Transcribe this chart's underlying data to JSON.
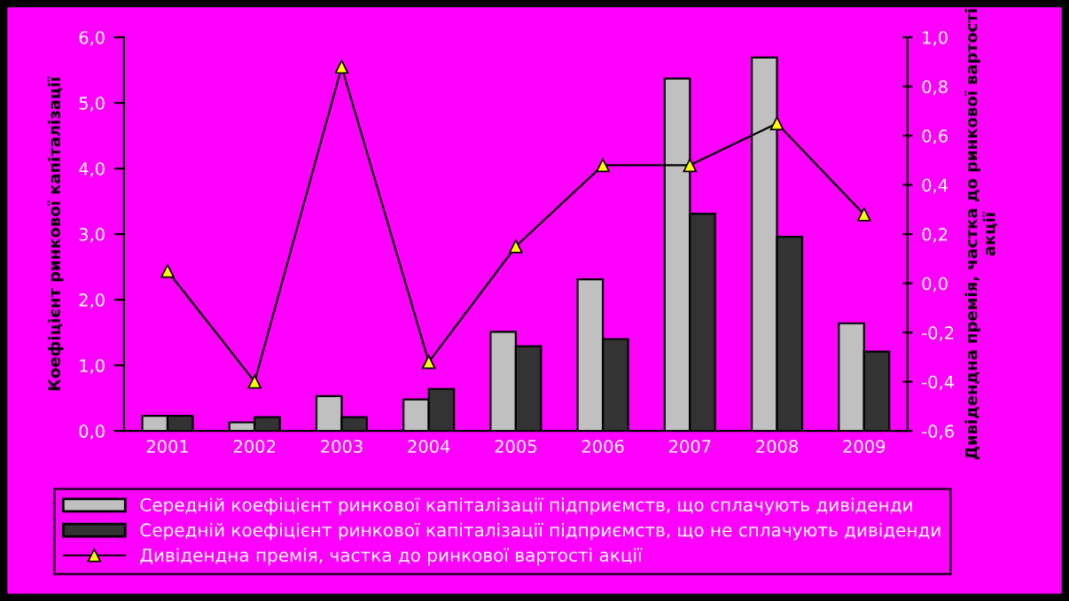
{
  "chart_data": {
    "type": "bar",
    "categories": [
      "2001",
      "2002",
      "2003",
      "2004",
      "2005",
      "2006",
      "2007",
      "2008",
      "2009"
    ],
    "ylabel": "Коефіцієнт ринкової капіталізації",
    "y2label": "Дивідендна премія, частка до ринкової вартості акції",
    "series": [
      {
        "name": "Середній коефіцієнт ринкової капіталізації підприємств, що сплачують дивіденди",
        "color": "#c0c0c0",
        "values": [
          0.23,
          0.13,
          0.53,
          0.48,
          1.51,
          2.31,
          5.37,
          5.69,
          1.64
        ]
      },
      {
        "name": "Середній коефіцієнт ринкової капіталізації підприємств, що не сплачують дивіденди",
        "color": "#333333",
        "values": [
          0.23,
          0.21,
          0.21,
          0.64,
          1.29,
          1.4,
          3.31,
          2.96,
          1.21
        ]
      },
      {
        "name": "Дивідендна премія, частка до ринкової вартості акції",
        "type": "line",
        "axis": "y2",
        "color": "#000000",
        "marker": "triangle",
        "values": [
          0.05,
          -0.4,
          0.88,
          -0.32,
          0.15,
          0.48,
          0.48,
          0.65,
          0.28
        ]
      }
    ],
    "ylim": [
      0,
      6
    ],
    "yticks": [
      {
        "value": 0,
        "label": "0,0"
      },
      {
        "value": 1,
        "label": "1,0"
      },
      {
        "value": 2,
        "label": "2,0"
      },
      {
        "value": 3,
        "label": "3,0"
      },
      {
        "value": 4,
        "label": "4,0"
      },
      {
        "value": 5,
        "label": "5,0"
      },
      {
        "value": 6,
        "label": "6,0"
      }
    ],
    "y2lim": [
      -0.6,
      1.0
    ],
    "y2ticks": [
      {
        "value": -0.6,
        "label": "-0,6"
      },
      {
        "value": -0.4,
        "label": "-0,4"
      },
      {
        "value": -0.2,
        "label": "-0,2"
      },
      {
        "value": 0,
        "label": "0,0"
      },
      {
        "value": 0.2,
        "label": "0,2"
      },
      {
        "value": 0.4,
        "label": "0,4"
      },
      {
        "value": 0.6,
        "label": "0,6"
      },
      {
        "value": 0.8,
        "label": "0,8"
      },
      {
        "value": 1.0,
        "label": "1,0"
      }
    ],
    "legend": "bottom",
    "grid": false
  }
}
